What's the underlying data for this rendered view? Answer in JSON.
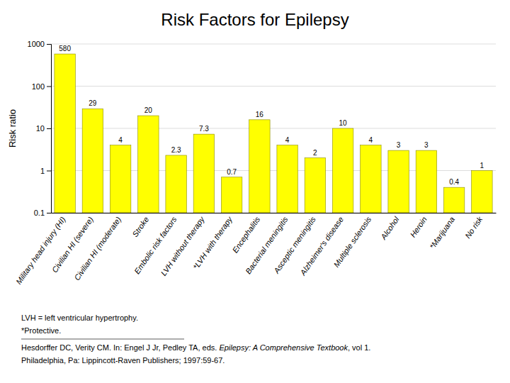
{
  "chart_data": {
    "type": "bar",
    "title": "Risk Factors for Epilepsy",
    "ylabel": "Risk ratio",
    "categories": [
      "Military head injury (HI)",
      "Civilian HI (severe)",
      "Civilian HI (moderate)",
      "Stroke",
      "Embolic risk factors",
      "LVH without therapy",
      "*LVH with therapy",
      "Encephalitis",
      "Bacterial meningitis",
      "Asceptic meningitis",
      "Alzheimer's disease",
      "Multiple sclerosis",
      "Alcohol",
      "Heroin",
      "*Marijuana",
      "No risk"
    ],
    "values": [
      580,
      29,
      4,
      20,
      2.3,
      7.3,
      0.7,
      16,
      4,
      2,
      10,
      4,
      3,
      3,
      0.4,
      1
    ],
    "color": "#ffff00",
    "log": "y",
    "ylim": [
      0.1,
      1000
    ],
    "yticks": [
      0.1,
      1,
      10,
      100,
      1000
    ],
    "grid": true,
    "data_labels": true,
    "annotations": [
      "LVH = left ventricular hypertrophy.",
      "*Protective.",
      "Hesdorffer DC, Verity CM. In: Engel J Jr, Pedley TA, eds. ",
      "Epilepsy: A Comprehensive Textbook",
      ", vol 1.",
      "Philadelphia, Pa: Lippincott-Raven Publishers; 1997:59-67."
    ]
  }
}
